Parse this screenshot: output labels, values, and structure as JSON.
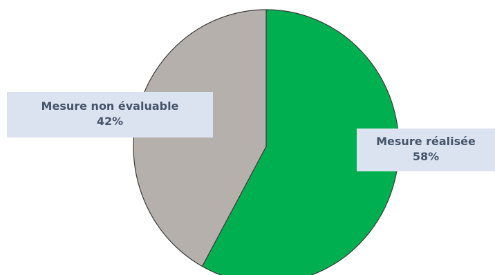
{
  "chart_data": {
    "type": "pie",
    "title": "",
    "slices": [
      {
        "name": "Mesure réalisée",
        "value": 58,
        "percent_label": "58%",
        "color": "#00b050"
      },
      {
        "name": "Mesure non évaluable",
        "value": 42,
        "percent_label": "42%",
        "color": "#b5b0ac"
      }
    ],
    "start_angle_deg": 0,
    "direction": "clockwise",
    "legend": "none"
  }
}
